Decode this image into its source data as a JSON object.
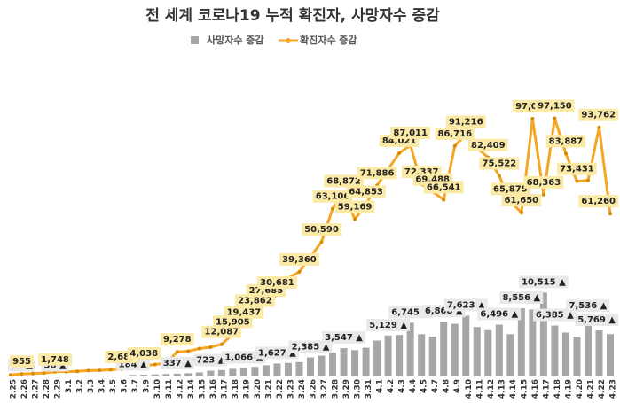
{
  "chart_data": {
    "type": "bar_line",
    "title": "전 세계 코로나19 누적 확진자, 사망자수 증감",
    "categories": [
      "2.25",
      "2.26",
      "2.27",
      "2.28",
      "2.29",
      "3.1",
      "3.2",
      "3.3",
      "3.4",
      "3.5",
      "3.6",
      "3.7",
      "3.9",
      "3.10",
      "3.11",
      "3.12",
      "3.14",
      "3.15",
      "3.16",
      "3.17",
      "3.18",
      "3.19",
      "3.20",
      "3.21",
      "3.22",
      "3.23",
      "3.24",
      "3.26",
      "3.27",
      "3.28",
      "3.29",
      "3.30",
      "3.31",
      "4.1",
      "4.2",
      "4.3",
      "4.4",
      "4.5",
      "4.7",
      "4.8",
      "4.9",
      "4.10",
      "4.11",
      "4.12",
      "4.13",
      "4.14",
      "4.15",
      "4.16",
      "4.17",
      "4.18",
      "4.19",
      "4.20",
      "4.21",
      "4.22",
      "4.23"
    ],
    "ylim": [
      0,
      135000
    ],
    "y2lim": [
      0,
      45000
    ],
    "series": [
      {
        "name": "사망자수 증감",
        "type": "bar",
        "axis": "y2",
        "color": "#a6a6a6",
        "values": [
          40,
          64,
          45,
          60,
          56,
          55,
          70,
          80,
          90,
          100,
          98,
          184,
          220,
          260,
          300,
          337,
          400,
          500,
          723,
          800,
          950,
          1066,
          1200,
          1400,
          1627,
          1700,
          1800,
          2385,
          2600,
          3000,
          3547,
          3300,
          3600,
          4500,
          5129,
          5200,
          6745,
          5300,
          5000,
          6868,
          6600,
          7623,
          6200,
          5800,
          6496,
          5300,
          8556,
          8400,
          10515,
          6385,
          5500,
          5000,
          7536,
          5769,
          5300
        ],
        "value_labels": [
          null,
          "64 ▲",
          null,
          null,
          "56 ▲",
          null,
          null,
          null,
          null,
          null,
          null,
          "184 ▲",
          null,
          null,
          null,
          "337 ▲",
          null,
          null,
          "723 ▲",
          null,
          null,
          "1,066 ▲",
          null,
          null,
          "1,627 ▲",
          null,
          null,
          "2,385 ▲",
          null,
          null,
          "3,547 ▲",
          null,
          null,
          null,
          "5,129 ▲",
          null,
          "6,745 ▲",
          null,
          null,
          "6,868 ▲",
          null,
          "7,623 ▲",
          null,
          null,
          "6,496 ▲",
          null,
          "8,556 ▲",
          null,
          "10,515 ▲",
          "6,385 ▲",
          null,
          null,
          "7,536 ▲",
          "5,769 ▲",
          null
        ]
      },
      {
        "name": "확진자수 증감",
        "type": "line",
        "color": "#f5a623",
        "values": [
          600,
          955,
          1100,
          1300,
          1748,
          1800,
          1900,
          2200,
          2300,
          2500,
          2689,
          3500,
          4038,
          4500,
          5000,
          9278,
          9500,
          10500,
          11000,
          12087,
          15905,
          19437,
          23862,
          27685,
          30681,
          37000,
          39360,
          45000,
          50590,
          63106,
          68872,
          59169,
          64853,
          71886,
          78000,
          84021,
          87011,
          72337,
          69488,
          66541,
          86716,
          91216,
          86000,
          82409,
          75522,
          65875,
          61650,
          97013,
          68363,
          97150,
          83887,
          73431,
          73800,
          93762,
          61260
        ],
        "value_labels": [
          null,
          "955",
          null,
          null,
          "1,748",
          null,
          null,
          null,
          null,
          null,
          "2,689",
          null,
          "4,038",
          null,
          null,
          "9,278",
          null,
          null,
          null,
          "12,087",
          "15,905",
          "19,437",
          "23,862",
          "27,685",
          "30,681",
          null,
          "39,360",
          null,
          "50,590",
          "63,106",
          "68,872",
          "59,169",
          "64,853",
          "71,886",
          null,
          "84,021",
          "87,011",
          "72,337",
          "69,488",
          "66,541",
          "86,716",
          "91,216",
          null,
          "82,409",
          "75,522",
          "65,875",
          "61,650",
          "97,013",
          "68,363",
          "97,150",
          "83,887",
          "73,431",
          null,
          "93,762",
          "61,260"
        ]
      }
    ]
  }
}
